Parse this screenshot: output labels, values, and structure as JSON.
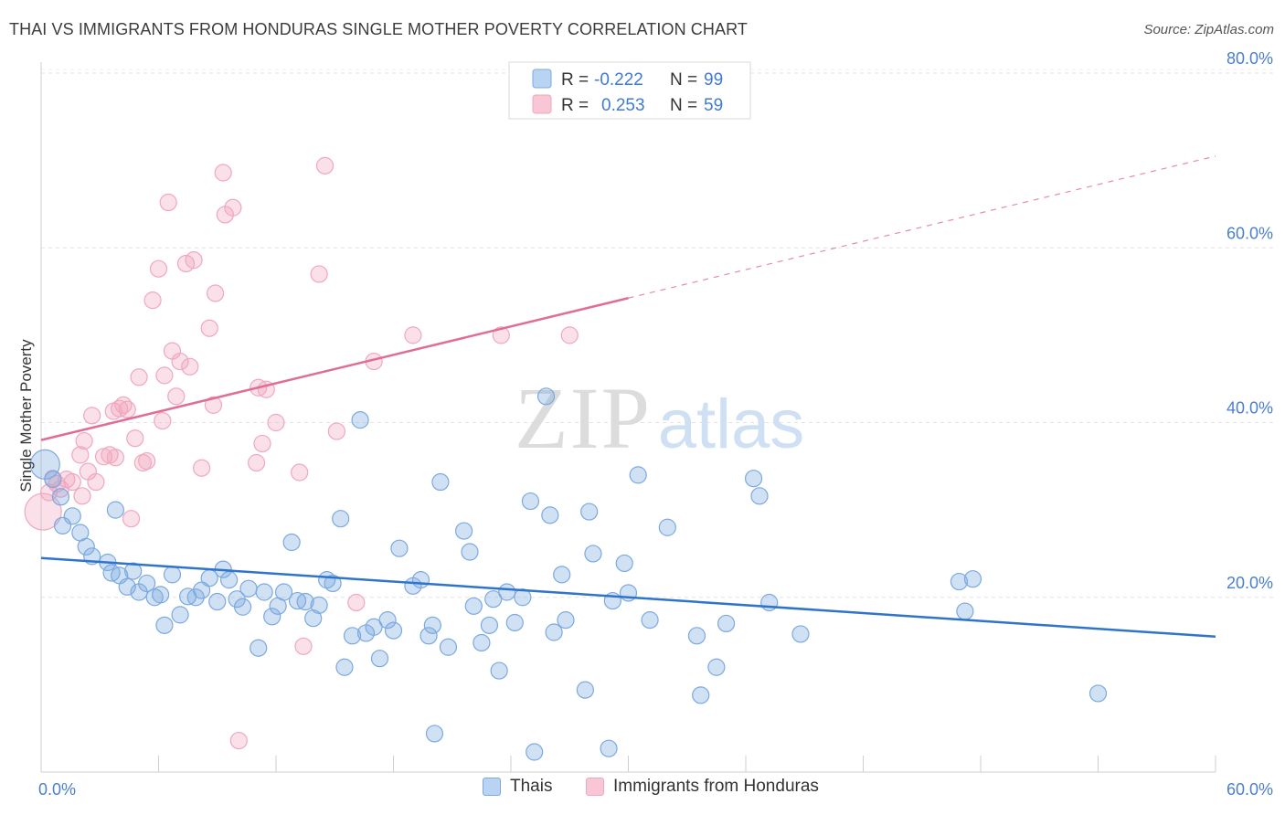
{
  "title": "THAI VS IMMIGRANTS FROM HONDURAS SINGLE MOTHER POVERTY CORRELATION CHART",
  "source": "Source: ZipAtlas.com",
  "watermark": {
    "zip": "ZIP",
    "atlas": "atlas"
  },
  "legend_top": {
    "rows": [
      {
        "r_label": "R = ",
        "r_value": "-0.222",
        "n_label": "N = ",
        "n_value": "99"
      },
      {
        "r_label": "R = ",
        "r_value": "0.253",
        "n_label": "N = ",
        "n_value": "59"
      }
    ]
  },
  "legend_bottom": [
    "Thais",
    "Immigrants from Honduras"
  ],
  "chart_data": {
    "type": "scatter",
    "title": "THAI VS IMMIGRANTS FROM HONDURAS SINGLE MOTHER POVERTY CORRELATION CHART",
    "xlabel": "",
    "ylabel": "Single Mother Poverty",
    "xlim": [
      0,
      60
    ],
    "ylim": [
      0,
      80
    ],
    "x_tick_labels": [
      "0.0%",
      "60.0%"
    ],
    "y_ticks": [
      20,
      40,
      60,
      80
    ],
    "y_tick_labels": [
      "20.0%",
      "40.0%",
      "60.0%",
      "80.0%"
    ],
    "grid": true,
    "legend_placement": "top-center",
    "colors": {
      "thais": "#7ba9e0",
      "thais_line": "#2f74cc",
      "honduras": "#f1a7be",
      "honduras_line": "#e06d95",
      "tick_text": "#4a7fd0"
    },
    "series": [
      {
        "name": "Thais",
        "r": -0.222,
        "n": 99,
        "trend": {
          "x": [
            0,
            60
          ],
          "y": [
            24.5,
            15.5
          ],
          "dashed_from": null
        },
        "points": [
          [
            0.2,
            35.2
          ],
          [
            0.6,
            33.5
          ],
          [
            1.0,
            31.5
          ],
          [
            1.1,
            28.2
          ],
          [
            1.6,
            29.3
          ],
          [
            2.0,
            27.4
          ],
          [
            2.3,
            25.8
          ],
          [
            2.6,
            24.7
          ],
          [
            3.4,
            24.0
          ],
          [
            3.6,
            22.8
          ],
          [
            3.8,
            30.0
          ],
          [
            4.0,
            22.5
          ],
          [
            4.4,
            21.2
          ],
          [
            4.7,
            23.0
          ],
          [
            5.0,
            20.6
          ],
          [
            5.4,
            21.6
          ],
          [
            5.8,
            20.0
          ],
          [
            6.1,
            20.3
          ],
          [
            6.3,
            16.8
          ],
          [
            6.7,
            22.6
          ],
          [
            7.1,
            18.0
          ],
          [
            7.5,
            20.1
          ],
          [
            7.9,
            20.0
          ],
          [
            8.2,
            20.8
          ],
          [
            8.6,
            22.2
          ],
          [
            9.0,
            19.5
          ],
          [
            9.3,
            23.2
          ],
          [
            9.6,
            22.0
          ],
          [
            10.0,
            19.8
          ],
          [
            10.3,
            18.9
          ],
          [
            10.6,
            21.0
          ],
          [
            11.1,
            14.2
          ],
          [
            11.4,
            20.6
          ],
          [
            11.8,
            17.8
          ],
          [
            12.1,
            19.0
          ],
          [
            12.4,
            20.6
          ],
          [
            12.8,
            26.3
          ],
          [
            13.1,
            19.6
          ],
          [
            13.5,
            19.5
          ],
          [
            13.9,
            17.6
          ],
          [
            14.2,
            19.1
          ],
          [
            14.6,
            22.0
          ],
          [
            14.9,
            21.6
          ],
          [
            15.3,
            29.0
          ],
          [
            15.5,
            12.0
          ],
          [
            15.9,
            15.6
          ],
          [
            16.3,
            40.3
          ],
          [
            16.6,
            15.9
          ],
          [
            17.0,
            16.6
          ],
          [
            17.3,
            13.0
          ],
          [
            17.7,
            17.4
          ],
          [
            18.0,
            16.2
          ],
          [
            18.3,
            25.6
          ],
          [
            19.0,
            21.3
          ],
          [
            19.4,
            22.0
          ],
          [
            19.8,
            15.6
          ],
          [
            20.0,
            16.8
          ],
          [
            20.4,
            33.2
          ],
          [
            20.8,
            14.3
          ],
          [
            21.6,
            27.6
          ],
          [
            21.9,
            25.2
          ],
          [
            22.1,
            19.0
          ],
          [
            22.5,
            14.8
          ],
          [
            22.9,
            16.8
          ],
          [
            23.1,
            19.8
          ],
          [
            23.4,
            11.6
          ],
          [
            23.8,
            20.6
          ],
          [
            24.2,
            17.1
          ],
          [
            24.6,
            20.0
          ],
          [
            25.0,
            31.0
          ],
          [
            25.2,
            2.3
          ],
          [
            25.8,
            43.0
          ],
          [
            26.0,
            29.4
          ],
          [
            26.2,
            16.0
          ],
          [
            26.6,
            22.6
          ],
          [
            26.8,
            17.4
          ],
          [
            27.8,
            9.4
          ],
          [
            28.0,
            29.8
          ],
          [
            28.2,
            25.0
          ],
          [
            29.0,
            2.7
          ],
          [
            29.2,
            19.6
          ],
          [
            29.8,
            23.9
          ],
          [
            30.0,
            20.5
          ],
          [
            30.5,
            34.0
          ],
          [
            31.1,
            17.4
          ],
          [
            32.0,
            28.0
          ],
          [
            33.5,
            15.6
          ],
          [
            33.7,
            8.8
          ],
          [
            34.5,
            12.0
          ],
          [
            35.0,
            17.0
          ],
          [
            36.4,
            33.6
          ],
          [
            36.7,
            31.6
          ],
          [
            37.2,
            19.4
          ],
          [
            38.8,
            15.8
          ],
          [
            46.9,
            21.8
          ],
          [
            47.2,
            18.4
          ],
          [
            47.6,
            22.1
          ],
          [
            54.0,
            9.0
          ],
          [
            20.1,
            4.4
          ]
        ]
      },
      {
        "name": "Immigrants from Honduras",
        "r": 0.253,
        "n": 59,
        "trend": {
          "x": [
            0,
            60
          ],
          "y": [
            38.0,
            70.5
          ],
          "dashed_from": 30
        },
        "points": [
          [
            0.1,
            29.8
          ],
          [
            0.4,
            32.0
          ],
          [
            0.6,
            33.6
          ],
          [
            0.8,
            33.0
          ],
          [
            1.0,
            32.4
          ],
          [
            1.3,
            33.5
          ],
          [
            1.6,
            33.2
          ],
          [
            2.0,
            36.3
          ],
          [
            2.1,
            31.6
          ],
          [
            2.2,
            37.9
          ],
          [
            2.4,
            34.4
          ],
          [
            2.6,
            40.8
          ],
          [
            2.8,
            33.2
          ],
          [
            3.2,
            36.1
          ],
          [
            3.5,
            36.3
          ],
          [
            3.7,
            41.3
          ],
          [
            3.8,
            36.0
          ],
          [
            4.0,
            41.6
          ],
          [
            4.2,
            42.0
          ],
          [
            4.4,
            41.5
          ],
          [
            4.6,
            29.0
          ],
          [
            4.8,
            38.2
          ],
          [
            5.0,
            45.2
          ],
          [
            5.2,
            35.4
          ],
          [
            5.4,
            35.6
          ],
          [
            5.7,
            54.0
          ],
          [
            6.0,
            57.6
          ],
          [
            6.2,
            40.2
          ],
          [
            6.3,
            45.4
          ],
          [
            6.5,
            65.2
          ],
          [
            6.7,
            48.2
          ],
          [
            6.9,
            43.0
          ],
          [
            7.1,
            47.0
          ],
          [
            7.4,
            58.2
          ],
          [
            7.6,
            46.4
          ],
          [
            7.8,
            58.6
          ],
          [
            8.2,
            34.8
          ],
          [
            8.6,
            50.8
          ],
          [
            8.9,
            54.8
          ],
          [
            8.8,
            42.0
          ],
          [
            9.3,
            68.6
          ],
          [
            9.4,
            63.8
          ],
          [
            9.8,
            64.6
          ],
          [
            10.1,
            3.6
          ],
          [
            11.0,
            35.4
          ],
          [
            11.1,
            44.0
          ],
          [
            11.3,
            37.6
          ],
          [
            11.5,
            43.8
          ],
          [
            12.0,
            40.0
          ],
          [
            13.2,
            34.3
          ],
          [
            13.4,
            14.4
          ],
          [
            14.2,
            57.0
          ],
          [
            14.5,
            69.4
          ],
          [
            15.1,
            39.0
          ],
          [
            16.1,
            19.4
          ],
          [
            17.0,
            47.0
          ],
          [
            19.0,
            50.0
          ],
          [
            23.5,
            50.0
          ],
          [
            27.0,
            50.0
          ]
        ]
      }
    ]
  }
}
